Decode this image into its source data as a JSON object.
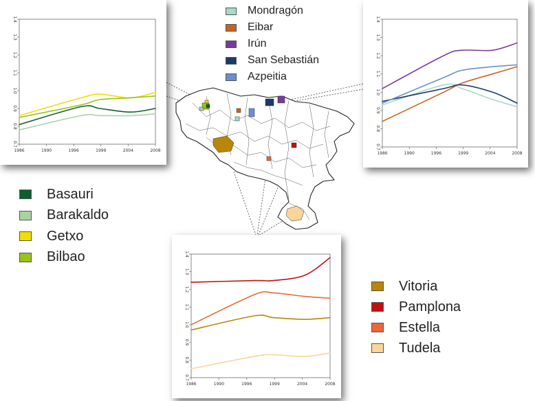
{
  "legend_top": {
    "items": [
      {
        "label": "Mondragón",
        "color": "#a8d8c8"
      },
      {
        "label": "Eibar",
        "color": "#c8641e"
      },
      {
        "label": "Irún",
        "color": "#7a3a9a"
      },
      {
        "label": "San Sebastián",
        "color": "#1a3a6a"
      },
      {
        "label": "Azpeitia",
        "color": "#6a8fd0"
      }
    ]
  },
  "legend_left": {
    "items": [
      {
        "label": "Basauri",
        "color": "#0d5e2e"
      },
      {
        "label": "Barakaldo",
        "color": "#a8d3a0"
      },
      {
        "label": "Getxo",
        "color": "#f2de00"
      },
      {
        "label": "Bilbao",
        "color": "#9cc21c"
      }
    ]
  },
  "legend_bottom_right": {
    "items": [
      {
        "label": "Vitoria",
        "color": "#b8860b"
      },
      {
        "label": "Pamplona",
        "color": "#c01010"
      },
      {
        "label": "Estella",
        "color": "#e8683a"
      },
      {
        "label": "Tudela",
        "color": "#fbd49a"
      }
    ]
  },
  "chart_data": [
    {
      "id": "top-left",
      "type": "line",
      "x": [
        1986,
        1996,
        1999,
        2004,
        2008
      ],
      "x_tick_labels": [
        "1986",
        "1990",
        "1996",
        "1999",
        "2004",
        "2008"
      ],
      "y_tick_labels": [
        "0.7",
        "0.8",
        "0.9",
        "1.0",
        "1.1",
        "1.2",
        "1.3",
        "1.4"
      ],
      "ylim": [
        0.7,
        1.4
      ],
      "series": [
        {
          "name": "Basauri",
          "color": "#0d5e2e",
          "values": [
            0.81,
            0.91,
            0.9,
            0.88,
            0.9
          ]
        },
        {
          "name": "Barakaldo",
          "color": "#a8d3a0",
          "values": [
            0.78,
            0.86,
            0.86,
            0.86,
            0.87
          ]
        },
        {
          "name": "Getxo",
          "color": "#f2de00",
          "values": [
            0.86,
            0.96,
            0.98,
            0.96,
            0.99
          ]
        },
        {
          "name": "Bilbao",
          "color": "#9cc21c",
          "values": [
            0.85,
            0.92,
            0.95,
            0.96,
            0.97
          ]
        }
      ]
    },
    {
      "id": "top-right",
      "type": "line",
      "x": [
        1986,
        1996,
        1999,
        2004,
        2008
      ],
      "x_tick_labels": [
        "1986",
        "1990",
        "1996",
        "1999",
        "2004",
        "2008"
      ],
      "y_tick_labels": [
        "0.7",
        "0.8",
        "0.9",
        "1.0",
        "1.1",
        "1.2",
        "1.3",
        "1.4"
      ],
      "ylim": [
        0.7,
        1.4
      ],
      "series": [
        {
          "name": "Mondragón",
          "color": "#a8d8c8",
          "values": [
            0.93,
            1.04,
            1.02,
            0.96,
            0.92
          ]
        },
        {
          "name": "Eibar",
          "color": "#c8641e",
          "values": [
            0.84,
            1.0,
            1.05,
            1.1,
            1.14
          ]
        },
        {
          "name": "Irún",
          "color": "#7a3a9a",
          "values": [
            1.02,
            1.2,
            1.23,
            1.23,
            1.27
          ]
        },
        {
          "name": "San Sebastián",
          "color": "#1a3a6a",
          "values": [
            0.95,
            1.02,
            1.04,
            1.0,
            0.94
          ]
        },
        {
          "name": "Azpeitia",
          "color": "#6a8fd0",
          "values": [
            0.94,
            1.08,
            1.12,
            1.14,
            1.15
          ]
        }
      ]
    },
    {
      "id": "bottom",
      "type": "line",
      "x": [
        1986,
        1996,
        1999,
        2004,
        2008
      ],
      "x_tick_labels": [
        "1986",
        "1990",
        "1996",
        "1999",
        "2004",
        "2008"
      ],
      "y_tick_labels": [
        "0.7",
        "0.8",
        "0.9",
        "1.0",
        "1.1",
        "1.2",
        "1.3",
        "1.4"
      ],
      "ylim": [
        0.7,
        1.4
      ],
      "series": [
        {
          "name": "Vitoria",
          "color": "#b8860b",
          "values": [
            0.97,
            1.05,
            1.04,
            1.03,
            1.04
          ]
        },
        {
          "name": "Pamplona",
          "color": "#c01010",
          "values": [
            1.24,
            1.25,
            1.25,
            1.28,
            1.38
          ]
        },
        {
          "name": "Estella",
          "color": "#e8683a",
          "values": [
            1.0,
            1.17,
            1.18,
            1.16,
            1.15
          ]
        },
        {
          "name": "Tudela",
          "color": "#fbd49a",
          "values": [
            0.75,
            0.82,
            0.83,
            0.82,
            0.84
          ]
        }
      ]
    }
  ]
}
